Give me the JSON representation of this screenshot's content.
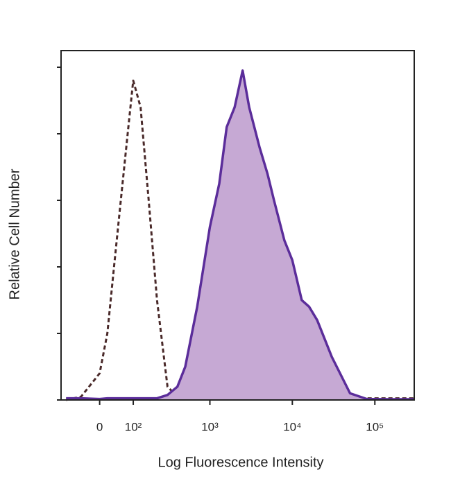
{
  "chart_data": {
    "type": "line",
    "xlabel": "Log Fluorescence Intensity",
    "ylabel": "Relative Cell Number",
    "xscale": "arcsinh",
    "x": [
      -100,
      -50,
      0,
      20,
      40,
      60,
      80,
      100,
      130,
      170,
      220,
      300,
      400,
      500,
      700,
      1000,
      1300,
      1600,
      2000,
      2500,
      3000,
      4000,
      5000,
      6000,
      8000,
      10000,
      13000,
      16000,
      20000,
      30000,
      50000,
      80000,
      150000,
      300000
    ],
    "series": [
      {
        "color": "#4a2a2a",
        "dashed": true,
        "values": [
          0,
          1,
          8,
          20,
          42,
          62,
          80,
          96,
          88,
          60,
          30,
          4,
          1,
          0.5,
          0.5,
          0.5,
          0.5,
          0.5,
          0.5,
          0.5,
          0.5,
          0.5,
          0.5,
          0.5,
          0.5,
          0.5,
          0.5,
          0.5,
          0.5,
          0.5,
          0.5,
          0.5,
          0.5,
          0.5
        ]
      },
      {
        "color": "#5b2d9a",
        "fill": "#c6a9d4",
        "values": [
          0.5,
          0.5,
          0.3,
          0.5,
          0.5,
          0.5,
          0.5,
          0.5,
          0.5,
          0.5,
          0.5,
          1.5,
          4,
          10,
          28,
          52,
          65,
          82,
          88,
          99,
          88,
          76,
          68,
          60,
          48,
          42,
          30,
          28,
          24,
          13,
          2,
          0.3,
          0.2,
          0.2
        ]
      }
    ],
    "xlim": [
      -120,
      300000
    ],
    "xticks": [
      0,
      {
        "value": 100,
        "label": "10²"
      },
      {
        "value": 1000,
        "label": "10³"
      },
      {
        "value": 10000,
        "label": "10⁴"
      },
      {
        "value": 100000,
        "label": "10⁵"
      }
    ],
    "ylim": [
      0,
      105
    ],
    "yticks": [
      0,
      20,
      40,
      60,
      80,
      100
    ]
  }
}
